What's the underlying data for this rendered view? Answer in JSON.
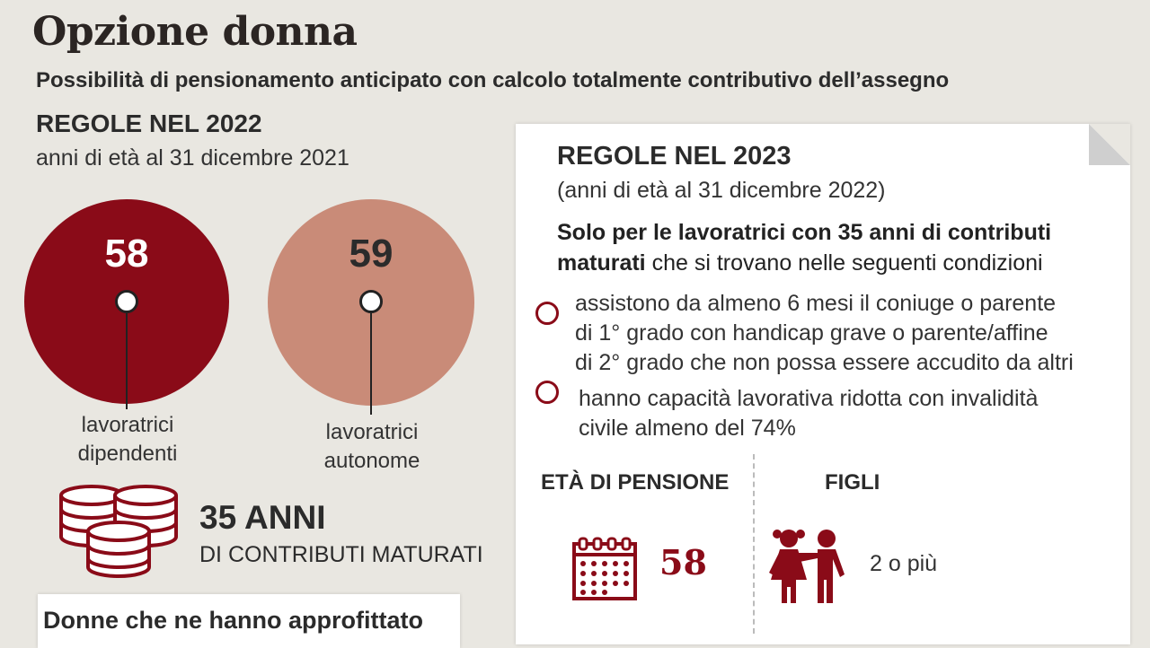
{
  "title": "Opzione donna",
  "subtitle": "Possibilità di pensionamento anticipato con calcolo totalmente contributivo dell’assegno",
  "rules_2022": {
    "heading": "REGOLE NEL 2022",
    "sub": "anni di età al 31 dicembre 2021",
    "dipendenti": {
      "age": "58",
      "label_1": "lavoratrici",
      "label_2": "dipendenti",
      "color": "#8a0b18"
    },
    "autonome": {
      "age": "59",
      "label_1": "lavoratrici",
      "label_2": "autonome",
      "color": "#c98b78"
    },
    "contrib_icon": "coins-stack-icon",
    "anni": "35 ANNI",
    "contrib_label": "DI CONTRIBUTI MATURATI"
  },
  "rules_2023": {
    "heading": "REGOLE NEL 2023",
    "sub": "(anni di età al 31 dicembre 2022)",
    "intro_bold": "Solo per le lavoratrici con 35 anni di contributi maturati",
    "intro_rest": " che si trovano nelle seguenti condizioni",
    "conditions": [
      {
        "l1": "assistono da almeno 6 mesi il coniuge o parente",
        "l2": "di 1° grado con handicap grave o parente/affine",
        "l3": "di 2° grado che non possa essere accudito da altri"
      },
      {
        "l1": "hanno capacità lavorativa ridotta con invalidità",
        "l2": "civile almeno del 74%"
      }
    ],
    "eta_header": "ETÀ DI PENSIONE",
    "eta_icon": "calendar-icon",
    "eta_value": "58",
    "figli_header": "FIGLI",
    "figli_icon": "children-icon",
    "figli_value": "2 o più"
  },
  "bottom": {
    "title": "Donne che ne hanno approfittato"
  },
  "colors": {
    "accent": "#8a0b18",
    "accent_light": "#c98b78",
    "background": "#e9e7e1"
  }
}
